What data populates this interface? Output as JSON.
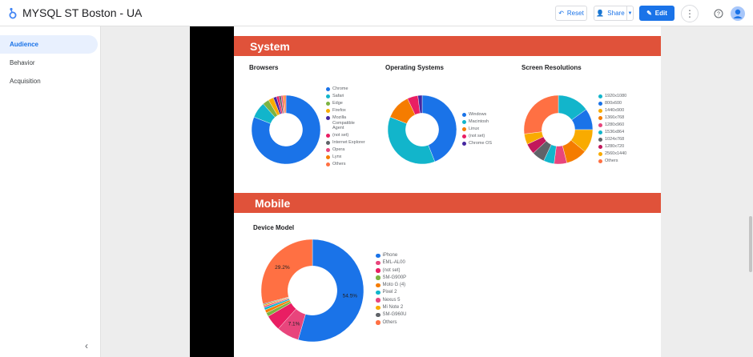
{
  "header": {
    "title": "MYSQL ST Boston - UA",
    "reset_label": "Reset",
    "share_label": "Share",
    "edit_label": "Edit"
  },
  "sidebar": {
    "items": [
      {
        "label": "Audience",
        "active": true
      },
      {
        "label": "Behavior",
        "active": false
      },
      {
        "label": "Acquisition",
        "active": false
      }
    ]
  },
  "sections": {
    "system": "System",
    "mobile": "Mobile"
  },
  "chart_data": [
    {
      "type": "pie",
      "title": "Browsers",
      "categories": [
        "Chrome",
        "Safari",
        "Edge",
        "Firefox",
        "Mozilla Compatible Agent",
        "(not set)",
        "Internet Explorer",
        "Opera",
        "Lynx",
        "Others"
      ],
      "values": [
        81,
        7.5,
        3,
        2.5,
        1.5,
        1.2,
        1,
        0.8,
        0.7,
        0.8
      ],
      "colors": [
        "#1a73e8",
        "#12b5cb",
        "#7cb342",
        "#f9ab00",
        "#4527a0",
        "#e91e63",
        "#5f6368",
        "#e8457c",
        "#f57c00",
        "#ff7043"
      ]
    },
    {
      "type": "pie",
      "title": "Operating Systems",
      "categories": [
        "Windows",
        "Macintosh",
        "Linux",
        "(not set)",
        "Chrome OS"
      ],
      "values": [
        44,
        37,
        12,
        5,
        2
      ],
      "colors": [
        "#1a73e8",
        "#12b5cb",
        "#f57c00",
        "#e91e63",
        "#4527a0"
      ]
    },
    {
      "type": "pie",
      "title": "Screen Resolutions",
      "categories": [
        "1920x1080",
        "800x600",
        "1440x900",
        "1366x768",
        "1280x960",
        "1536x864",
        "1024x768",
        "1280x720",
        "2560x1440",
        "Others"
      ],
      "values": [
        15,
        10,
        11,
        10,
        6,
        5,
        6,
        5,
        5,
        27
      ],
      "colors": [
        "#12b5cb",
        "#1a73e8",
        "#f9ab00",
        "#f57c00",
        "#e8457c",
        "#12b5cb",
        "#5f6368",
        "#c2185b",
        "#f9ab00",
        "#ff7043"
      ]
    },
    {
      "type": "pie",
      "title": "Device Model",
      "categories": [
        "iPhone",
        "EML-AL00",
        "(not set)",
        "SM-G900P",
        "Moto G (4)",
        "Pixel 2",
        "Nexus 5",
        "Mi Note 2",
        "SM-G960U",
        "Others"
      ],
      "values": [
        54.5,
        7.1,
        5,
        1.2,
        1,
        0.8,
        0.5,
        0.4,
        0.3,
        29.2
      ],
      "colors": [
        "#1a73e8",
        "#e8457c",
        "#e91e63",
        "#7cb342",
        "#f57c00",
        "#12b5cb",
        "#e8457c",
        "#f9ab00",
        "#5f6368",
        "#ff7043"
      ],
      "data_labels": {
        "0": "54.5%",
        "1": "7.1%",
        "9": "29.2%"
      }
    }
  ]
}
